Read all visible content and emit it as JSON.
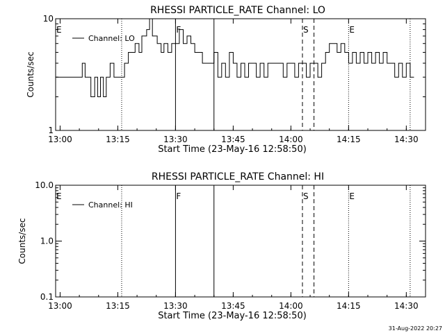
{
  "footer": {
    "timestamp": "31-Aug-2022 20:27"
  },
  "chart_data": [
    {
      "type": "line",
      "title": "RHESSI PARTICLE_RATE Channel: LO",
      "xlabel": "Start Time (23-May-16 12:58:50)",
      "ylabel": "Counts/sec",
      "y_scale": "log",
      "ylim": [
        1,
        10
      ],
      "y_ticks": [
        1,
        10
      ],
      "y_tick_labels": [
        "1",
        "10"
      ],
      "xlim": [
        "12:58:50",
        "14:35:00"
      ],
      "x_ticks": [
        "13:00",
        "13:15",
        "13:30",
        "13:45",
        "14:00",
        "14:15",
        "14:30"
      ],
      "legend": {
        "position": "top-left",
        "entries": [
          "Channel: LO"
        ]
      },
      "series": [
        {
          "name": "Channel: LO",
          "x": [
            "12:58:50",
            "13:05:00",
            "13:05:45",
            "13:06:30",
            "13:07:15",
            "13:08:00",
            "13:09:00",
            "13:09:45",
            "13:10:30",
            "13:11:15",
            "13:12:00",
            "13:13:00",
            "13:14:00",
            "13:15:00",
            "13:16:00",
            "13:16:45",
            "13:17:45",
            "13:18:30",
            "13:19:30",
            "13:20:30",
            "13:21:15",
            "13:22:30",
            "13:23:15",
            "13:24:00",
            "13:25:15",
            "13:26:15",
            "13:27:00",
            "13:28:00",
            "13:29:00",
            "13:30:00",
            "13:31:00",
            "13:32:00",
            "13:33:00",
            "13:34:00",
            "13:35:00",
            "13:36:00",
            "13:37:00",
            "13:38:00",
            "13:39:00",
            "13:40:00",
            "13:41:00",
            "13:42:00",
            "13:43:00",
            "13:44:00",
            "13:45:00",
            "13:46:00",
            "13:47:00",
            "13:48:00",
            "13:49:00",
            "13:50:00",
            "13:51:00",
            "13:52:00",
            "13:53:00",
            "13:54:00",
            "13:55:00",
            "13:56:00",
            "13:57:00",
            "13:58:00",
            "13:59:00",
            "14:00:00",
            "14:01:00",
            "14:02:00",
            "14:03:00",
            "14:04:00",
            "14:05:00",
            "14:06:00",
            "14:07:00",
            "14:08:00",
            "14:09:00",
            "14:10:00",
            "14:11:00",
            "14:12:00",
            "14:13:00",
            "14:14:00",
            "14:15:00",
            "14:16:00",
            "14:17:00",
            "14:18:00",
            "14:19:00",
            "14:20:00",
            "14:21:00",
            "14:22:00",
            "14:23:00",
            "14:24:00",
            "14:25:00",
            "14:26:00",
            "14:27:00",
            "14:28:00",
            "14:29:00",
            "14:30:00",
            "14:31:00",
            "14:32:00"
          ],
          "y": [
            3,
            3,
            4,
            3,
            3,
            2,
            3,
            2,
            3,
            2,
            3,
            4,
            3,
            3,
            3,
            4,
            5,
            5,
            6,
            5,
            7,
            8,
            10,
            7,
            6,
            5,
            6,
            5,
            6,
            6,
            8,
            6,
            7,
            6,
            5,
            5,
            4,
            4,
            4,
            5,
            3,
            4,
            3,
            5,
            4,
            3,
            4,
            3,
            4,
            4,
            3,
            4,
            3,
            4,
            4,
            4,
            4,
            3,
            4,
            4,
            3,
            4,
            4,
            3,
            4,
            4,
            3,
            4,
            5,
            6,
            6,
            5,
            6,
            5,
            4,
            5,
            4,
            5,
            4,
            5,
            4,
            5,
            4,
            5,
            4,
            4,
            3,
            4,
            3,
            4,
            3,
            3
          ]
        }
      ],
      "markers": [
        {
          "label": "E",
          "x": "12:58:50",
          "style": "dotted"
        },
        {
          "label": "",
          "x": "13:16:00",
          "style": "dotted"
        },
        {
          "label": "F",
          "x": "13:30:00",
          "style": "solid"
        },
        {
          "label": "",
          "x": "13:40:00",
          "style": "solid"
        },
        {
          "label": "S",
          "x": "14:03:00",
          "style": "dashed"
        },
        {
          "label": "",
          "x": "14:06:00",
          "style": "dashed"
        },
        {
          "label": "E",
          "x": "14:15:00",
          "style": "dotted"
        },
        {
          "label": "",
          "x": "14:31:00",
          "style": "dotted"
        }
      ]
    },
    {
      "type": "line",
      "title": "RHESSI PARTICLE_RATE Channel: HI",
      "xlabel": "Start Time (23-May-16 12:58:50)",
      "ylabel": "Counts/sec",
      "y_scale": "log",
      "ylim": [
        0.1,
        10
      ],
      "y_ticks": [
        0.1,
        1,
        10
      ],
      "y_tick_labels": [
        "0.1",
        "1.0",
        "10.0"
      ],
      "xlim": [
        "12:58:50",
        "14:35:00"
      ],
      "x_ticks": [
        "13:00",
        "13:15",
        "13:30",
        "13:45",
        "14:00",
        "14:15",
        "14:30"
      ],
      "legend": {
        "position": "top-left",
        "entries": [
          "Channel: HI"
        ]
      },
      "series": [
        {
          "name": "Channel: HI",
          "x": [],
          "y": []
        }
      ],
      "markers": [
        {
          "label": "E",
          "x": "12:58:50",
          "style": "dotted"
        },
        {
          "label": "",
          "x": "13:16:00",
          "style": "dotted"
        },
        {
          "label": "F",
          "x": "13:30:00",
          "style": "solid"
        },
        {
          "label": "",
          "x": "13:40:00",
          "style": "solid"
        },
        {
          "label": "S",
          "x": "14:03:00",
          "style": "dashed"
        },
        {
          "label": "",
          "x": "14:06:00",
          "style": "dashed"
        },
        {
          "label": "E",
          "x": "14:15:00",
          "style": "dotted"
        },
        {
          "label": "",
          "x": "14:31:00",
          "style": "dotted"
        }
      ]
    }
  ]
}
